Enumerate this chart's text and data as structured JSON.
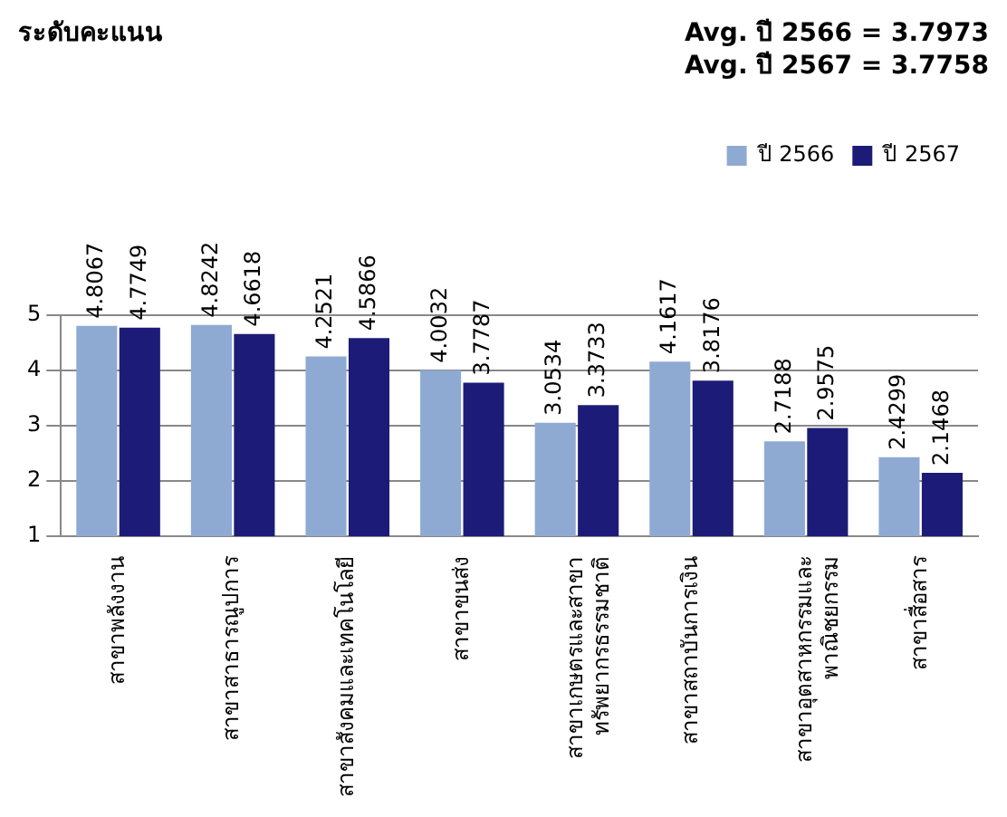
{
  "chart_data": {
    "type": "bar",
    "title": "ระดับคะแนน",
    "annotations": [
      "Avg. ปี 2566 = 3.7973",
      "Avg. ปี 2567 = 3.7758"
    ],
    "categories": [
      "สาขาพลังงาน",
      "สาขาสาธารณูปการ",
      "สาขาสังคมและเทคโนโลยี",
      "สาขาขนส่ง",
      "สาขาเกษตรและสาขา\nทรัพยากรธรรมชาติ",
      "สาขาสถาบันการเงิน",
      "สาขาอุตสาหกรรมและ\nพาณิชยกรรม",
      "สาขาสื่อสาร"
    ],
    "series": [
      {
        "name": "ปี 2566",
        "color": "#8faad2",
        "values": [
          4.8067,
          4.8242,
          4.2521,
          4.0032,
          3.0534,
          4.1617,
          2.7188,
          2.4299
        ]
      },
      {
        "name": "ปี 2567",
        "color": "#1c1c78",
        "values": [
          4.7749,
          4.6618,
          4.5866,
          3.7787,
          3.3733,
          3.8176,
          2.9575,
          2.1468
        ]
      }
    ],
    "ylim": [
      1,
      5
    ],
    "yticks": [
      1,
      2,
      3,
      4,
      5
    ],
    "grid": "y",
    "legend": "top right",
    "data_labels": true
  }
}
